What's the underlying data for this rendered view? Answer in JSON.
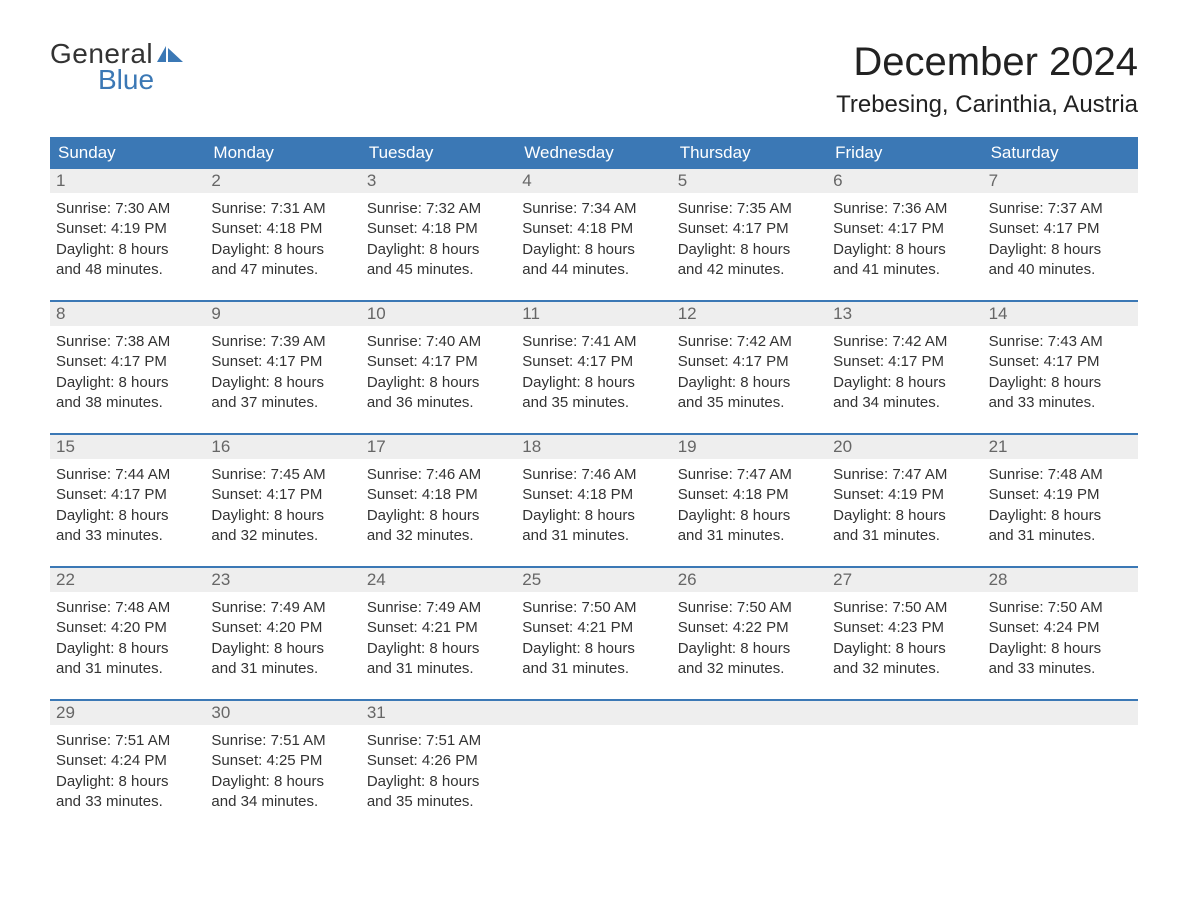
{
  "logo": {
    "word1": "General",
    "word2": "Blue"
  },
  "title": "December 2024",
  "location": "Trebesing, Carinthia, Austria",
  "colors": {
    "header_bg": "#3b78b5",
    "header_text": "#ffffff",
    "daynum_bg": "#eeeeee",
    "daynum_text": "#666666",
    "body_text": "#333333",
    "rule": "#3b78b5",
    "logo_blue": "#3b78b5"
  },
  "dayNames": [
    "Sunday",
    "Monday",
    "Tuesday",
    "Wednesday",
    "Thursday",
    "Friday",
    "Saturday"
  ],
  "weeks": [
    [
      {
        "n": "1",
        "sunrise": "7:30 AM",
        "sunset": "4:19 PM",
        "day_l1": "Daylight: 8 hours",
        "day_l2": "and 48 minutes."
      },
      {
        "n": "2",
        "sunrise": "7:31 AM",
        "sunset": "4:18 PM",
        "day_l1": "Daylight: 8 hours",
        "day_l2": "and 47 minutes."
      },
      {
        "n": "3",
        "sunrise": "7:32 AM",
        "sunset": "4:18 PM",
        "day_l1": "Daylight: 8 hours",
        "day_l2": "and 45 minutes."
      },
      {
        "n": "4",
        "sunrise": "7:34 AM",
        "sunset": "4:18 PM",
        "day_l1": "Daylight: 8 hours",
        "day_l2": "and 44 minutes."
      },
      {
        "n": "5",
        "sunrise": "7:35 AM",
        "sunset": "4:17 PM",
        "day_l1": "Daylight: 8 hours",
        "day_l2": "and 42 minutes."
      },
      {
        "n": "6",
        "sunrise": "7:36 AM",
        "sunset": "4:17 PM",
        "day_l1": "Daylight: 8 hours",
        "day_l2": "and 41 minutes."
      },
      {
        "n": "7",
        "sunrise": "7:37 AM",
        "sunset": "4:17 PM",
        "day_l1": "Daylight: 8 hours",
        "day_l2": "and 40 minutes."
      }
    ],
    [
      {
        "n": "8",
        "sunrise": "7:38 AM",
        "sunset": "4:17 PM",
        "day_l1": "Daylight: 8 hours",
        "day_l2": "and 38 minutes."
      },
      {
        "n": "9",
        "sunrise": "7:39 AM",
        "sunset": "4:17 PM",
        "day_l1": "Daylight: 8 hours",
        "day_l2": "and 37 minutes."
      },
      {
        "n": "10",
        "sunrise": "7:40 AM",
        "sunset": "4:17 PM",
        "day_l1": "Daylight: 8 hours",
        "day_l2": "and 36 minutes."
      },
      {
        "n": "11",
        "sunrise": "7:41 AM",
        "sunset": "4:17 PM",
        "day_l1": "Daylight: 8 hours",
        "day_l2": "and 35 minutes."
      },
      {
        "n": "12",
        "sunrise": "7:42 AM",
        "sunset": "4:17 PM",
        "day_l1": "Daylight: 8 hours",
        "day_l2": "and 35 minutes."
      },
      {
        "n": "13",
        "sunrise": "7:42 AM",
        "sunset": "4:17 PM",
        "day_l1": "Daylight: 8 hours",
        "day_l2": "and 34 minutes."
      },
      {
        "n": "14",
        "sunrise": "7:43 AM",
        "sunset": "4:17 PM",
        "day_l1": "Daylight: 8 hours",
        "day_l2": "and 33 minutes."
      }
    ],
    [
      {
        "n": "15",
        "sunrise": "7:44 AM",
        "sunset": "4:17 PM",
        "day_l1": "Daylight: 8 hours",
        "day_l2": "and 33 minutes."
      },
      {
        "n": "16",
        "sunrise": "7:45 AM",
        "sunset": "4:17 PM",
        "day_l1": "Daylight: 8 hours",
        "day_l2": "and 32 minutes."
      },
      {
        "n": "17",
        "sunrise": "7:46 AM",
        "sunset": "4:18 PM",
        "day_l1": "Daylight: 8 hours",
        "day_l2": "and 32 minutes."
      },
      {
        "n": "18",
        "sunrise": "7:46 AM",
        "sunset": "4:18 PM",
        "day_l1": "Daylight: 8 hours",
        "day_l2": "and 31 minutes."
      },
      {
        "n": "19",
        "sunrise": "7:47 AM",
        "sunset": "4:18 PM",
        "day_l1": "Daylight: 8 hours",
        "day_l2": "and 31 minutes."
      },
      {
        "n": "20",
        "sunrise": "7:47 AM",
        "sunset": "4:19 PM",
        "day_l1": "Daylight: 8 hours",
        "day_l2": "and 31 minutes."
      },
      {
        "n": "21",
        "sunrise": "7:48 AM",
        "sunset": "4:19 PM",
        "day_l1": "Daylight: 8 hours",
        "day_l2": "and 31 minutes."
      }
    ],
    [
      {
        "n": "22",
        "sunrise": "7:48 AM",
        "sunset": "4:20 PM",
        "day_l1": "Daylight: 8 hours",
        "day_l2": "and 31 minutes."
      },
      {
        "n": "23",
        "sunrise": "7:49 AM",
        "sunset": "4:20 PM",
        "day_l1": "Daylight: 8 hours",
        "day_l2": "and 31 minutes."
      },
      {
        "n": "24",
        "sunrise": "7:49 AM",
        "sunset": "4:21 PM",
        "day_l1": "Daylight: 8 hours",
        "day_l2": "and 31 minutes."
      },
      {
        "n": "25",
        "sunrise": "7:50 AM",
        "sunset": "4:21 PM",
        "day_l1": "Daylight: 8 hours",
        "day_l2": "and 31 minutes."
      },
      {
        "n": "26",
        "sunrise": "7:50 AM",
        "sunset": "4:22 PM",
        "day_l1": "Daylight: 8 hours",
        "day_l2": "and 32 minutes."
      },
      {
        "n": "27",
        "sunrise": "7:50 AM",
        "sunset": "4:23 PM",
        "day_l1": "Daylight: 8 hours",
        "day_l2": "and 32 minutes."
      },
      {
        "n": "28",
        "sunrise": "7:50 AM",
        "sunset": "4:24 PM",
        "day_l1": "Daylight: 8 hours",
        "day_l2": "and 33 minutes."
      }
    ],
    [
      {
        "n": "29",
        "sunrise": "7:51 AM",
        "sunset": "4:24 PM",
        "day_l1": "Daylight: 8 hours",
        "day_l2": "and 33 minutes."
      },
      {
        "n": "30",
        "sunrise": "7:51 AM",
        "sunset": "4:25 PM",
        "day_l1": "Daylight: 8 hours",
        "day_l2": "and 34 minutes."
      },
      {
        "n": "31",
        "sunrise": "7:51 AM",
        "sunset": "4:26 PM",
        "day_l1": "Daylight: 8 hours",
        "day_l2": "and 35 minutes."
      },
      null,
      null,
      null,
      null
    ]
  ],
  "labels": {
    "sunrise_prefix": "Sunrise: ",
    "sunset_prefix": "Sunset: "
  }
}
